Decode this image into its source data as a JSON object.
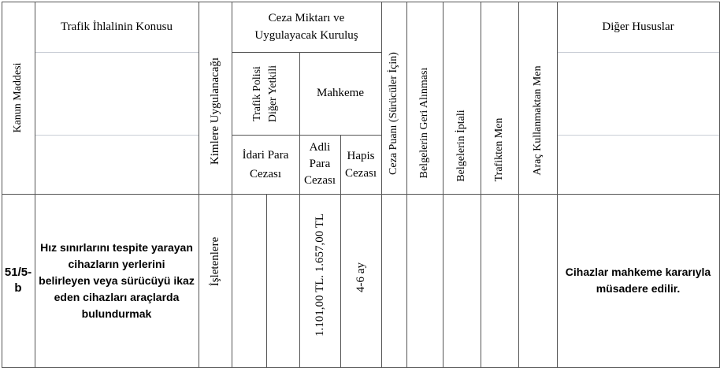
{
  "headers": {
    "kanun_maddesi": "Kanun Maddesi",
    "ihlal_konusu": "Trafik İhlalinin Konusu",
    "kimlere": "Kimlere Uygulanacağı",
    "ceza_miktari_line1": "Ceza Miktarı ve",
    "ceza_miktari_line2": "Uygulayacak Kuruluş",
    "trafik_polisi_line1": "Trafik Polisi",
    "trafik_polisi_line2": "Diğer Yetkili",
    "mahkeme": "Mahkeme",
    "idari_line1": "İdari Para",
    "idari_line2": "Cezası",
    "adli_line1": "Adli",
    "adli_line2": "Para",
    "adli_line3": "Cezası",
    "hapis_line1": "Hapis",
    "hapis_line2": "Cezası",
    "ceza_puani": "Ceza Puanı (Sürücüler İçin)",
    "belge_geri": "Belgelerin Geri Alınması",
    "belge_iptal": "Belgelerin İptali",
    "trafikten_men": "Trafikten Men",
    "arac_men": "Araç Kullanmaktan Men",
    "diger": "Diğer Hususlar"
  },
  "row": {
    "madde_line1": "51/5-",
    "madde_line2": "b",
    "konu_line1": "Hız sınırlarını tespite yarayan",
    "konu_line2": "cihazların yerlerini",
    "konu_line3": "belirleyen veya sürücüyü ikaz",
    "konu_line4": "eden cihazları araçlarda",
    "konu_line5": "bulundurmak",
    "kimlere": "İşletenlere",
    "adli_para": "1.101,00 TL. 1.657,00 TL",
    "hapis": "4-6 ay",
    "diger_line1": "Cihazlar mahkeme kararıyla",
    "diger_line2": "müsadere edilir."
  }
}
